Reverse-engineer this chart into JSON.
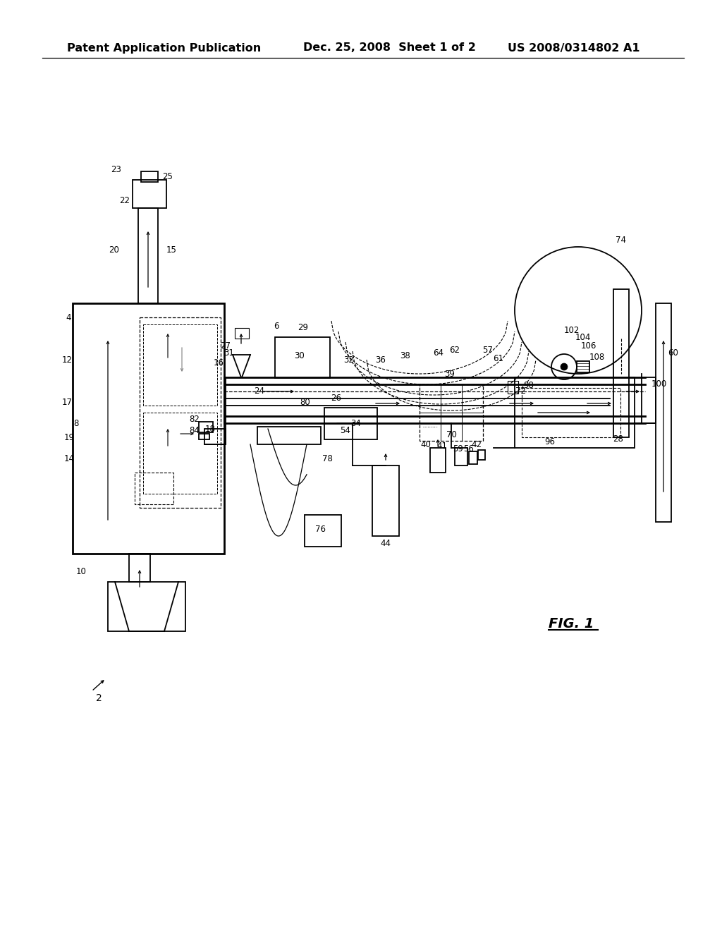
{
  "title_left": "Patent Application Publication",
  "title_center": "Dec. 25, 2008  Sheet 1 of 2",
  "title_right": "US 2008/0314802 A1",
  "fig_label": "FIG. 1",
  "background_color": "#ffffff",
  "line_color": "#000000",
  "font_size_header": 11.5,
  "font_size_labels": 8.5
}
